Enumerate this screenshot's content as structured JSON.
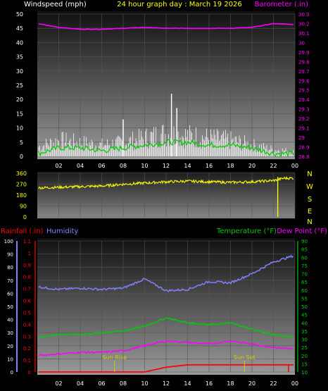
{
  "header": {
    "left_title": "Windspeed (mph)",
    "center_title": "24 hour graph day : March 19 2026",
    "right_title": "Barometer (.in)"
  },
  "bottom_header": {
    "rainfall_label": "Rainfall (.in)",
    "humidity_label": "Humidity",
    "temperature_label": "Temperature (°F)",
    "dewpoint_label": "Dew Point (°F)"
  },
  "colors": {
    "windspeed": "#ffffff",
    "windavg": "#00cc00",
    "barometer": "#ff00ff",
    "direction": "#ffff00",
    "rainfall": "#ff0000",
    "humidity": "#8080ff",
    "temperature": "#00cc00",
    "dewpoint": "#ff00ff",
    "sun_marker": "#cccc00",
    "axis_label": "#ffff00"
  },
  "chart_data": [
    {
      "id": "wind-baro",
      "type": "line",
      "x": [
        0,
        2,
        4,
        6,
        8,
        10,
        12,
        14,
        16,
        18,
        20,
        22,
        24
      ],
      "xticks": [
        "02",
        "04",
        "06",
        "08",
        "10",
        "12",
        "14",
        "16",
        "18",
        "20",
        "22",
        "00"
      ],
      "xtick_hours": [
        2,
        4,
        6,
        8,
        10,
        12,
        14,
        16,
        18,
        20,
        22,
        24
      ],
      "ylim_left": [
        0,
        50
      ],
      "yticks_left": [
        "0",
        "5",
        "10",
        "15",
        "20",
        "25",
        "30",
        "35",
        "40",
        "45",
        "50"
      ],
      "ylim_right": [
        28.8,
        30.3
      ],
      "yticks_right": [
        "28.8",
        "28.9",
        "29",
        "29.1",
        "29.2",
        "29.3",
        "29.4",
        "29.5",
        "29.6",
        "29.7",
        "29.8",
        "29.9",
        "30",
        "30.1",
        "30.2",
        "30.3"
      ],
      "series": [
        {
          "key": "gust",
          "values": [
            4,
            7,
            6,
            5,
            6,
            8,
            10,
            9,
            8,
            7,
            5,
            3,
            2
          ]
        },
        {
          "key": "avg",
          "values": [
            1,
            3,
            3,
            2,
            3,
            4,
            5,
            5,
            4,
            4,
            3,
            1,
            1
          ]
        },
        {
          "key": "barometer",
          "values": [
            30.2,
            30.16,
            30.14,
            30.14,
            30.15,
            30.16,
            30.15,
            30.15,
            30.15,
            30.15,
            30.16,
            30.2,
            30.19
          ]
        }
      ],
      "gust_peaks": [
        [
          12.5,
          22
        ],
        [
          13,
          17
        ],
        [
          8,
          13
        ]
      ]
    },
    {
      "id": "direction",
      "type": "line",
      "x": [
        0,
        2,
        4,
        6,
        8,
        10,
        12,
        14,
        16,
        18,
        20,
        22,
        23,
        24
      ],
      "xticks": [
        "02",
        "04",
        "06",
        "08",
        "10",
        "12",
        "14",
        "16",
        "18",
        "20",
        "22",
        "00"
      ],
      "xtick_hours": [
        2,
        4,
        6,
        8,
        10,
        12,
        14,
        16,
        18,
        20,
        22,
        24
      ],
      "ylim": [
        0,
        360
      ],
      "yticks": [
        "0",
        "90",
        "180",
        "270",
        "360"
      ],
      "compass": [
        "N",
        "W",
        "S",
        "E",
        "N"
      ],
      "series": [
        {
          "key": "direction",
          "values": [
            240,
            245,
            250,
            255,
            270,
            280,
            290,
            295,
            290,
            285,
            290,
            300,
            320,
            320
          ]
        }
      ],
      "drop_hour": 22.4
    },
    {
      "id": "temp-hum-rain",
      "type": "line",
      "x": [
        0,
        2,
        4,
        6,
        8,
        10,
        12,
        14,
        16,
        18,
        20,
        22,
        24
      ],
      "xticks": [
        "02",
        "04",
        "06",
        "08",
        "10",
        "12",
        "14",
        "16",
        "18",
        "20",
        "22",
        "00"
      ],
      "xtick_hours": [
        2,
        4,
        6,
        8,
        10,
        12,
        14,
        16,
        18,
        20,
        22,
        24
      ],
      "ylim_humidity": [
        0,
        100
      ],
      "yticks_humidity": [
        "0",
        "10",
        "20",
        "30",
        "40",
        "50",
        "60",
        "70",
        "80",
        "90",
        "100"
      ],
      "ylim_rain": [
        0,
        1.1
      ],
      "yticks_rain": [
        "0",
        "0.1",
        "0.2",
        "0.3",
        "0.4",
        "0.5",
        "0.6",
        "0.7",
        "0.8",
        "0.9",
        "1",
        "1.1"
      ],
      "ylim_temp": [
        10,
        90
      ],
      "yticks_temp": [
        "10",
        "15",
        "20",
        "25",
        "30",
        "35",
        "40",
        "45",
        "50",
        "55",
        "60",
        "65",
        "70",
        "75",
        "80",
        "85",
        "90"
      ],
      "series": [
        {
          "key": "humidity",
          "values": [
            65,
            63,
            64,
            63,
            64,
            71,
            62,
            63,
            69,
            68,
            75,
            84,
            89
          ]
        },
        {
          "key": "temperature",
          "values": [
            31,
            33,
            33,
            34,
            35,
            38,
            43,
            40,
            39,
            40,
            36,
            33,
            31
          ]
        },
        {
          "key": "dewpoint",
          "values": [
            20,
            21,
            22,
            22,
            23,
            26,
            29,
            28,
            27,
            29,
            27,
            25,
            24
          ]
        },
        {
          "key": "rainfall",
          "values": [
            0,
            0,
            0,
            0,
            0,
            0,
            0.04,
            0.06,
            0.06,
            0.06,
            0.06,
            0.06,
            0.06
          ]
        }
      ],
      "sunrise_hour": 7.2,
      "sunset_hour": 19.3,
      "sunrise_label": "Sun Rise",
      "sunset_label": "Sun Set"
    }
  ]
}
